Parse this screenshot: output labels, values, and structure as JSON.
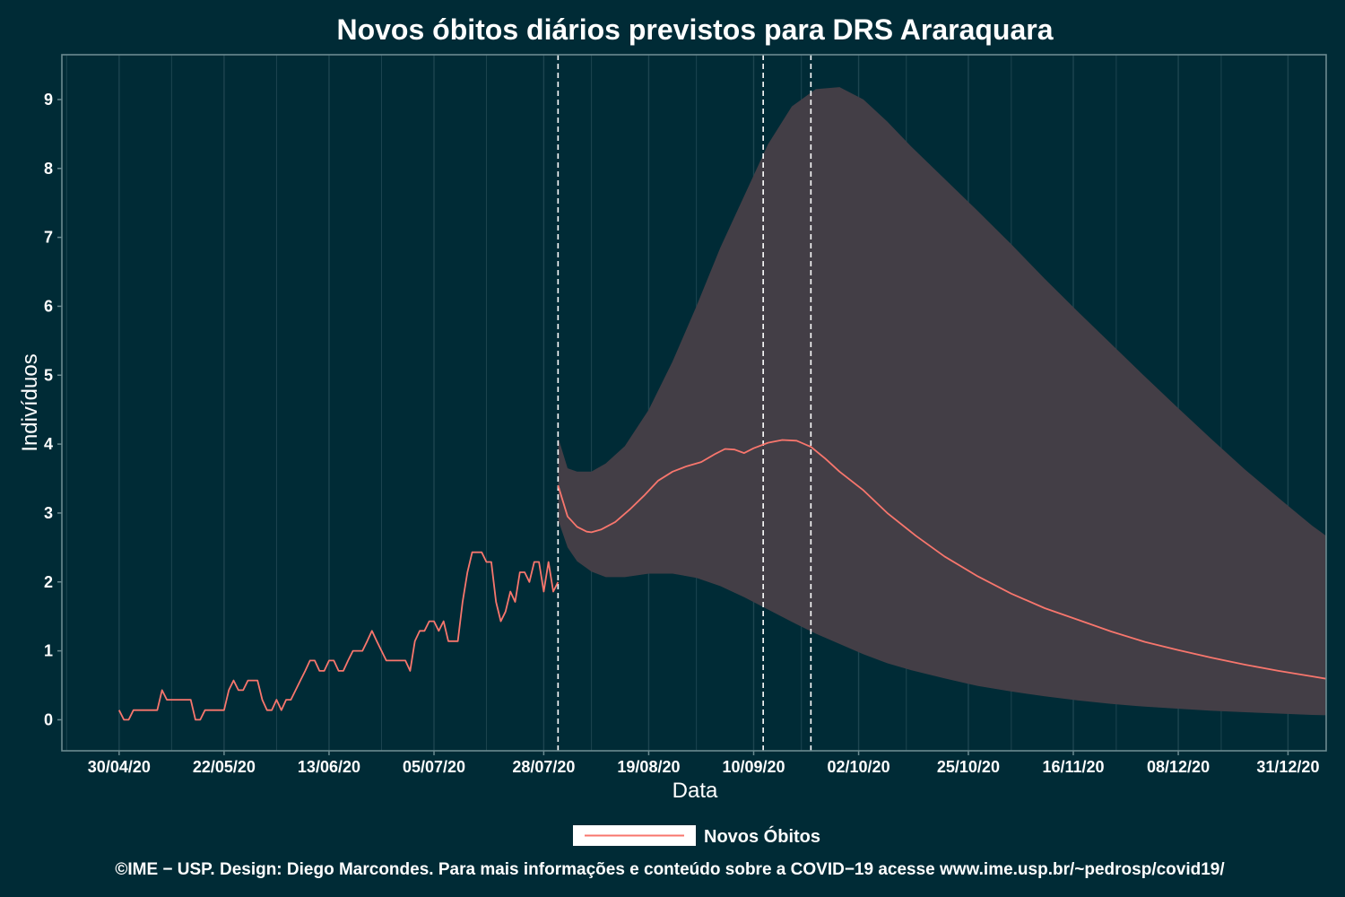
{
  "chart_data": {
    "type": "line",
    "title": "Novos óbitos diários previstos para DRS Araraquara",
    "xlabel": "Data",
    "ylabel": "Indivíduos",
    "x_start": "2020-04-30",
    "xlim": [
      "2020-04-18",
      "2021-01-08"
    ],
    "ylim": [
      -0.45,
      9.65
    ],
    "x_ticks": [
      "30/04/20",
      "22/05/20",
      "13/06/20",
      "05/07/20",
      "28/07/20",
      "19/08/20",
      "10/09/20",
      "02/10/20",
      "25/10/20",
      "16/11/20",
      "08/12/20",
      "31/12/20"
    ],
    "x_tick_dates": [
      "2020-04-30",
      "2020-05-22",
      "2020-06-13",
      "2020-07-05",
      "2020-07-28",
      "2020-08-19",
      "2020-09-10",
      "2020-10-02",
      "2020-10-25",
      "2020-11-16",
      "2020-12-08",
      "2020-12-31"
    ],
    "y_ticks": [
      0,
      1,
      2,
      3,
      4,
      5,
      6,
      7,
      8,
      9
    ],
    "grid": true,
    "vlines": [
      "2020-07-31",
      "2020-09-12",
      "2020-09-22"
    ],
    "legend_position": "bottom",
    "series": [
      {
        "name": "Novos Óbitos",
        "color": "#f8766d",
        "observed": [
          [
            "2020-04-30",
            0.14
          ],
          [
            "2020-05-01",
            0.0
          ],
          [
            "2020-05-02",
            0.0
          ],
          [
            "2020-05-03",
            0.14
          ],
          [
            "2020-05-04",
            0.14
          ],
          [
            "2020-05-05",
            0.14
          ],
          [
            "2020-05-06",
            0.14
          ],
          [
            "2020-05-07",
            0.14
          ],
          [
            "2020-05-08",
            0.14
          ],
          [
            "2020-05-09",
            0.43
          ],
          [
            "2020-05-10",
            0.29
          ],
          [
            "2020-05-11",
            0.29
          ],
          [
            "2020-05-12",
            0.29
          ],
          [
            "2020-05-13",
            0.29
          ],
          [
            "2020-05-14",
            0.29
          ],
          [
            "2020-05-15",
            0.29
          ],
          [
            "2020-05-16",
            0.0
          ],
          [
            "2020-05-17",
            0.0
          ],
          [
            "2020-05-18",
            0.14
          ],
          [
            "2020-05-19",
            0.14
          ],
          [
            "2020-05-20",
            0.14
          ],
          [
            "2020-05-21",
            0.14
          ],
          [
            "2020-05-22",
            0.14
          ],
          [
            "2020-05-23",
            0.43
          ],
          [
            "2020-05-24",
            0.57
          ],
          [
            "2020-05-25",
            0.43
          ],
          [
            "2020-05-26",
            0.43
          ],
          [
            "2020-05-27",
            0.57
          ],
          [
            "2020-05-28",
            0.57
          ],
          [
            "2020-05-29",
            0.57
          ],
          [
            "2020-05-30",
            0.29
          ],
          [
            "2020-05-31",
            0.14
          ],
          [
            "2020-06-01",
            0.14
          ],
          [
            "2020-06-02",
            0.29
          ],
          [
            "2020-06-03",
            0.14
          ],
          [
            "2020-06-04",
            0.29
          ],
          [
            "2020-06-05",
            0.29
          ],
          [
            "2020-06-06",
            0.43
          ],
          [
            "2020-06-07",
            0.57
          ],
          [
            "2020-06-08",
            0.71
          ],
          [
            "2020-06-09",
            0.86
          ],
          [
            "2020-06-10",
            0.86
          ],
          [
            "2020-06-11",
            0.71
          ],
          [
            "2020-06-12",
            0.71
          ],
          [
            "2020-06-13",
            0.86
          ],
          [
            "2020-06-14",
            0.86
          ],
          [
            "2020-06-15",
            0.71
          ],
          [
            "2020-06-16",
            0.71
          ],
          [
            "2020-06-17",
            0.86
          ],
          [
            "2020-06-18",
            1.0
          ],
          [
            "2020-06-19",
            1.0
          ],
          [
            "2020-06-20",
            1.0
          ],
          [
            "2020-06-21",
            1.14
          ],
          [
            "2020-06-22",
            1.29
          ],
          [
            "2020-06-23",
            1.14
          ],
          [
            "2020-06-24",
            1.0
          ],
          [
            "2020-06-25",
            0.86
          ],
          [
            "2020-06-26",
            0.86
          ],
          [
            "2020-06-27",
            0.86
          ],
          [
            "2020-06-28",
            0.86
          ],
          [
            "2020-06-29",
            0.86
          ],
          [
            "2020-06-30",
            0.71
          ],
          [
            "2020-07-01",
            1.14
          ],
          [
            "2020-07-02",
            1.29
          ],
          [
            "2020-07-03",
            1.29
          ],
          [
            "2020-07-04",
            1.43
          ],
          [
            "2020-07-05",
            1.43
          ],
          [
            "2020-07-06",
            1.29
          ],
          [
            "2020-07-07",
            1.43
          ],
          [
            "2020-07-08",
            1.14
          ],
          [
            "2020-07-09",
            1.14
          ],
          [
            "2020-07-10",
            1.14
          ],
          [
            "2020-07-11",
            1.71
          ],
          [
            "2020-07-12",
            2.14
          ],
          [
            "2020-07-13",
            2.43
          ],
          [
            "2020-07-14",
            2.43
          ],
          [
            "2020-07-15",
            2.43
          ],
          [
            "2020-07-16",
            2.29
          ],
          [
            "2020-07-17",
            2.29
          ],
          [
            "2020-07-18",
            1.71
          ],
          [
            "2020-07-19",
            1.43
          ],
          [
            "2020-07-20",
            1.57
          ],
          [
            "2020-07-21",
            1.86
          ],
          [
            "2020-07-22",
            1.71
          ],
          [
            "2020-07-23",
            2.14
          ],
          [
            "2020-07-24",
            2.14
          ],
          [
            "2020-07-25",
            2.0
          ],
          [
            "2020-07-26",
            2.29
          ],
          [
            "2020-07-27",
            2.29
          ],
          [
            "2020-07-28",
            1.86
          ],
          [
            "2020-07-29",
            2.29
          ],
          [
            "2020-07-30",
            1.86
          ],
          [
            "2020-07-31",
            2.0
          ]
        ],
        "forecast": [
          [
            "2020-07-31",
            3.4
          ],
          [
            "2020-08-02",
            2.95
          ],
          [
            "2020-08-04",
            2.8
          ],
          [
            "2020-08-06",
            2.73
          ],
          [
            "2020-08-07",
            2.72
          ],
          [
            "2020-08-09",
            2.76
          ],
          [
            "2020-08-12",
            2.87
          ],
          [
            "2020-08-15",
            3.05
          ],
          [
            "2020-08-18",
            3.25
          ],
          [
            "2020-08-21",
            3.47
          ],
          [
            "2020-08-24",
            3.6
          ],
          [
            "2020-08-27",
            3.68
          ],
          [
            "2020-08-30",
            3.74
          ],
          [
            "2020-09-02",
            3.86
          ],
          [
            "2020-09-04",
            3.93
          ],
          [
            "2020-09-06",
            3.92
          ],
          [
            "2020-09-08",
            3.87
          ],
          [
            "2020-09-10",
            3.94
          ],
          [
            "2020-09-13",
            4.02
          ],
          [
            "2020-09-16",
            4.06
          ],
          [
            "2020-09-19",
            4.05
          ],
          [
            "2020-09-22",
            3.96
          ],
          [
            "2020-09-25",
            3.79
          ],
          [
            "2020-09-28",
            3.6
          ],
          [
            "2020-10-03",
            3.33
          ],
          [
            "2020-10-08",
            3.0
          ],
          [
            "2020-10-14",
            2.67
          ],
          [
            "2020-10-20",
            2.37
          ],
          [
            "2020-10-27",
            2.08
          ],
          [
            "2020-11-03",
            1.83
          ],
          [
            "2020-11-10",
            1.62
          ],
          [
            "2020-11-17",
            1.45
          ],
          [
            "2020-11-24",
            1.28
          ],
          [
            "2020-12-01",
            1.13
          ],
          [
            "2020-12-08",
            1.01
          ],
          [
            "2020-12-15",
            0.9
          ],
          [
            "2020-12-22",
            0.8
          ],
          [
            "2020-12-29",
            0.71
          ],
          [
            "2021-01-05",
            0.63
          ],
          [
            "2021-01-12",
            0.55
          ],
          [
            "2021-01-19",
            0.48
          ],
          [
            "2021-01-26",
            0.41
          ]
        ],
        "band": [
          [
            "2020-07-31",
            2.9,
            4.1
          ],
          [
            "2020-08-02",
            2.5,
            3.65
          ],
          [
            "2020-08-04",
            2.3,
            3.6
          ],
          [
            "2020-08-07",
            2.15,
            3.6
          ],
          [
            "2020-08-10",
            2.07,
            3.72
          ],
          [
            "2020-08-14",
            2.07,
            3.97
          ],
          [
            "2020-08-19",
            2.12,
            4.5
          ],
          [
            "2020-08-24",
            2.12,
            5.2
          ],
          [
            "2020-08-29",
            2.06,
            6.0
          ],
          [
            "2020-09-03",
            1.94,
            6.85
          ],
          [
            "2020-09-08",
            1.78,
            7.6
          ],
          [
            "2020-09-13",
            1.6,
            8.35
          ],
          [
            "2020-09-18",
            1.42,
            8.9
          ],
          [
            "2020-09-23",
            1.25,
            9.15
          ],
          [
            "2020-09-28",
            1.1,
            9.18
          ],
          [
            "2020-10-03",
            0.95,
            9.0
          ],
          [
            "2020-10-08",
            0.82,
            8.68
          ],
          [
            "2020-10-13",
            0.72,
            8.32
          ],
          [
            "2020-10-20",
            0.6,
            7.85
          ],
          [
            "2020-10-27",
            0.49,
            7.38
          ],
          [
            "2020-11-03",
            0.41,
            6.9
          ],
          [
            "2020-11-10",
            0.34,
            6.4
          ],
          [
            "2020-11-17",
            0.28,
            5.92
          ],
          [
            "2020-11-24",
            0.23,
            5.45
          ],
          [
            "2020-12-01",
            0.19,
            4.98
          ],
          [
            "2020-12-08",
            0.16,
            4.52
          ],
          [
            "2020-12-15",
            0.13,
            4.07
          ],
          [
            "2020-12-22",
            0.11,
            3.63
          ],
          [
            "2020-12-29",
            0.09,
            3.22
          ],
          [
            "2021-01-05",
            0.07,
            2.82
          ],
          [
            "2021-01-12",
            0.06,
            2.47
          ],
          [
            "2021-01-19",
            0.05,
            2.15
          ],
          [
            "2021-01-26",
            0.04,
            1.87
          ]
        ]
      }
    ]
  },
  "legend": {
    "label": "Novos Óbitos"
  },
  "caption": "©IME − USP. Design: Diego Marcondes. Para mais informações e conteúdo sobre a COVID−19 acesse www.ime.usp.br/~pedrosp/covid19/",
  "colors": {
    "background": "#002b36",
    "grid": "#1d4550",
    "axis": "#6b8a90",
    "band": "#433e46",
    "line": "#f8766d",
    "vline": "#ffffff"
  }
}
